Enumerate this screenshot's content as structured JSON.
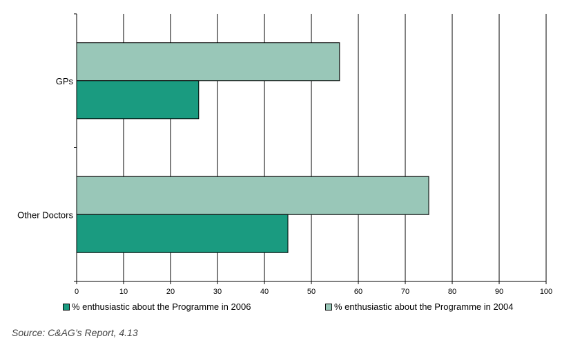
{
  "chart_data": {
    "type": "bar",
    "orientation": "horizontal",
    "categories": [
      "GPs",
      "Other Doctors"
    ],
    "series": [
      {
        "name": "% enthusiastic about the Programme in 2004",
        "color": "#99c7b8",
        "values": [
          56,
          75
        ]
      },
      {
        "name": "% enthusiastic about the Programme in 2006",
        "color": "#1a9b80",
        "values": [
          26,
          45
        ]
      }
    ],
    "xlim": [
      0,
      100
    ],
    "xticks": [
      "0",
      "10",
      "20",
      "30",
      "40",
      "50",
      "60",
      "70",
      "80",
      "90",
      "100"
    ],
    "grid": true,
    "legend_position": "bottom",
    "legend": [
      {
        "label": "% enthusiastic about the Programme in 2006",
        "color": "#1a9b80"
      },
      {
        "label": "% enthusiastic about the Programme in 2004",
        "color": "#99c7b8"
      }
    ]
  },
  "source": "Source: C&AG’s Report, 4.13"
}
